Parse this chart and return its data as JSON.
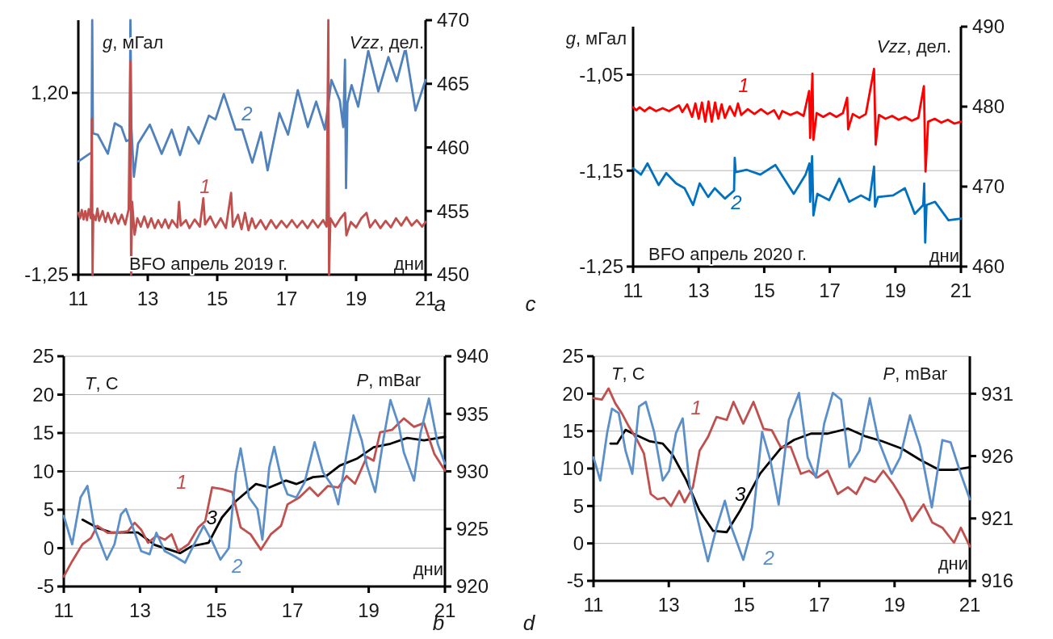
{
  "chart_data": [
    {
      "type": "line",
      "title": "a",
      "ylabel": "g, мГал",
      "y2label": "Vzz, дел.",
      "xlabel": "дни",
      "annotations": [
        "BFO апрель 2019 г."
      ],
      "xlim": [
        11,
        21
      ],
      "xticks": [
        11,
        13,
        15,
        17,
        19,
        21
      ],
      "ylim": [
        -1.25,
        -1.18
      ],
      "yticks": [
        {
          "value": -1.25,
          "label": "-1,25"
        },
        {
          "value": -1.2,
          "label": "1,20"
        }
      ],
      "y2lim": [
        450,
        470
      ],
      "y2ticks": [
        450,
        455,
        460,
        465,
        470
      ],
      "grid": "y",
      "series": [
        {
          "name": "1",
          "color": "#c0504d",
          "x": [
            11.0,
            11.05,
            11.1,
            11.15,
            11.2,
            11.25,
            11.3,
            11.36,
            11.39,
            11.41,
            11.43,
            11.5,
            11.55,
            11.6,
            11.7,
            11.78,
            11.85,
            11.95,
            12.05,
            12.15,
            12.25,
            12.35,
            12.45,
            12.5,
            12.52,
            12.55,
            12.62,
            12.7,
            12.8,
            12.9,
            13.0,
            13.1,
            13.2,
            13.3,
            13.4,
            13.5,
            13.6,
            13.7,
            13.85,
            13.9,
            13.95,
            14.1,
            14.2,
            14.35,
            14.5,
            14.6,
            14.65,
            14.8,
            14.95,
            15.1,
            15.25,
            15.4,
            15.45,
            15.6,
            15.7,
            15.8,
            15.9,
            16.0,
            16.1,
            16.25,
            16.4,
            16.55,
            16.7,
            16.85,
            17.0,
            17.15,
            17.3,
            17.45,
            17.6,
            17.75,
            17.9,
            18.05,
            18.15,
            18.2,
            18.22,
            18.26,
            18.4,
            18.55,
            18.68,
            18.72,
            18.85,
            19.0,
            19.15,
            19.3,
            19.4,
            19.55,
            19.7,
            19.85,
            20.0,
            20.15,
            20.3,
            20.45,
            20.6,
            20.75,
            20.9,
            21.0
          ],
          "values": [
            -1.233,
            -1.2345,
            -1.2322,
            -1.2348,
            -1.2325,
            -1.235,
            -1.232,
            -1.2345,
            -1.2072,
            -1.25,
            -1.2335,
            -1.235,
            -1.2318,
            -1.2352,
            -1.2325,
            -1.2355,
            -1.233,
            -1.2358,
            -1.2332,
            -1.236,
            -1.2335,
            -1.2362,
            -1.232,
            -1.1913,
            -1.25,
            -1.23,
            -1.239,
            -1.2345,
            -1.2368,
            -1.234,
            -1.237,
            -1.2345,
            -1.2372,
            -1.235,
            -1.237,
            -1.2348,
            -1.2372,
            -1.235,
            -1.237,
            -1.23,
            -1.2365,
            -1.235,
            -1.2372,
            -1.2348,
            -1.2368,
            -1.229,
            -1.2362,
            -1.234,
            -1.237,
            -1.2345,
            -1.2372,
            -1.2275,
            -1.2368,
            -1.2335,
            -1.2375,
            -1.233,
            -1.2378,
            -1.2345,
            -1.2372,
            -1.235,
            -1.2375,
            -1.235,
            -1.2372,
            -1.2352,
            -1.237,
            -1.235,
            -1.237,
            -1.2352,
            -1.2372,
            -1.235,
            -1.237,
            -1.235,
            -1.2368,
            -1.18,
            -1.25,
            -1.2345,
            -1.2368,
            -1.2345,
            -1.233,
            -1.2392,
            -1.2355,
            -1.237,
            -1.2345,
            -1.233,
            -1.237,
            -1.235,
            -1.2372,
            -1.2352,
            -1.237,
            -1.2345,
            -1.2365,
            -1.2342,
            -1.2365,
            -1.235,
            -1.2368,
            -1.2355
          ]
        },
        {
          "name": "2",
          "color": "#4f81bd",
          "axis": "y2",
          "x": [
            11.0,
            11.27,
            11.38,
            11.4,
            11.42,
            11.56,
            11.85,
            12.05,
            12.24,
            12.38,
            12.48,
            12.5,
            12.53,
            12.6,
            12.72,
            13.06,
            13.4,
            13.69,
            13.93,
            14.17,
            14.47,
            14.76,
            14.95,
            15.19,
            15.53,
            15.72,
            16.01,
            16.26,
            16.45,
            16.79,
            17.04,
            17.32,
            17.61,
            17.85,
            18.1,
            18.29,
            18.53,
            18.63,
            18.68,
            18.71,
            18.75,
            18.87,
            19.06,
            19.35,
            19.64,
            19.93,
            20.17,
            20.42,
            20.71,
            21.0
          ],
          "values": [
            458.9,
            459.4,
            459.6,
            470,
            461.1,
            461.0,
            459.5,
            461.9,
            461.6,
            460.5,
            460.6,
            470,
            461.5,
            457.7,
            460.3,
            461.8,
            459.5,
            461.4,
            459.4,
            461.6,
            460.3,
            462.5,
            462.2,
            464.2,
            461.4,
            461.4,
            458.8,
            461.2,
            458.2,
            462.7,
            461.0,
            464.5,
            461.6,
            463.6,
            461.4,
            465.3,
            463.7,
            461.6,
            466.9,
            456.8,
            463.5,
            464.9,
            463.2,
            467.6,
            464.4,
            467.1,
            465.2,
            467.8,
            462.9,
            465.3
          ]
        }
      ]
    },
    {
      "type": "line",
      "title": "c",
      "ylabel": "g, мГал",
      "y2label": "Vzz, дел.",
      "xlabel": "дни",
      "annotations": [
        "BFO апрель 2020 г."
      ],
      "xlim": [
        11,
        21
      ],
      "xticks": [
        11,
        13,
        15,
        17,
        19,
        21
      ],
      "ylim": [
        -1.25,
        -1.0
      ],
      "yticks": [
        {
          "value": -1.25,
          "label": "-1,25"
        },
        {
          "value": -1.15,
          "label": "-1,15"
        },
        {
          "value": -1.05,
          "label": "-1,05"
        }
      ],
      "y2lim": [
        460,
        490
      ],
      "y2ticks": [
        460,
        470,
        480,
        490
      ],
      "grid": "y",
      "series": [
        {
          "name": "1",
          "color": "#ff0000",
          "x": [
            11.0,
            11.1,
            11.2,
            11.35,
            11.5,
            11.7,
            11.9,
            12.1,
            12.3,
            12.4,
            12.5,
            12.65,
            12.8,
            12.9,
            13.0,
            13.1,
            13.2,
            13.3,
            13.4,
            13.5,
            13.6,
            13.7,
            13.8,
            13.95,
            14.1,
            14.2,
            14.3,
            14.5,
            14.7,
            14.9,
            15.1,
            15.3,
            15.45,
            15.55,
            15.8,
            16.0,
            16.2,
            16.37,
            16.4,
            16.47,
            16.5,
            16.6,
            16.8,
            17.0,
            17.2,
            17.4,
            17.53,
            17.56,
            17.7,
            17.9,
            18.1,
            18.35,
            18.4,
            18.5,
            18.7,
            18.9,
            19.1,
            19.3,
            19.5,
            19.7,
            19.87,
            19.92,
            20.0,
            20.2,
            20.4,
            20.6,
            20.8,
            21.0
          ],
          "values": [
            -1.084,
            -1.087,
            -1.084,
            -1.088,
            -1.084,
            -1.088,
            -1.085,
            -1.088,
            -1.084,
            -1.082,
            -1.089,
            -1.081,
            -1.094,
            -1.08,
            -1.096,
            -1.079,
            -1.099,
            -1.078,
            -1.099,
            -1.079,
            -1.096,
            -1.081,
            -1.095,
            -1.083,
            -1.093,
            -1.08,
            -1.092,
            -1.086,
            -1.091,
            -1.086,
            -1.091,
            -1.087,
            -1.096,
            -1.088,
            -1.092,
            -1.089,
            -1.093,
            -1.067,
            -1.116,
            -1.049,
            -1.118,
            -1.09,
            -1.094,
            -1.09,
            -1.094,
            -1.09,
            -1.074,
            -1.107,
            -1.091,
            -1.095,
            -1.091,
            -1.044,
            -1.123,
            -1.092,
            -1.096,
            -1.093,
            -1.097,
            -1.094,
            -1.098,
            -1.095,
            -1.062,
            -1.151,
            -1.099,
            -1.096,
            -1.1,
            -1.097,
            -1.101,
            -1.099
          ]
        },
        {
          "name": "2",
          "color": "#0070c0",
          "axis": "y2",
          "x": [
            11.0,
            11.24,
            11.44,
            11.78,
            12.01,
            12.31,
            12.57,
            12.83,
            13.03,
            13.29,
            13.49,
            13.8,
            14.08,
            14.1,
            14.13,
            14.47,
            14.88,
            15.34,
            15.9,
            16.26,
            16.38,
            16.4,
            16.46,
            16.5,
            16.62,
            16.98,
            17.29,
            17.59,
            17.95,
            18.21,
            18.35,
            18.38,
            18.47,
            18.93,
            19.29,
            19.59,
            19.85,
            19.88,
            19.91,
            19.95,
            20.21,
            20.62,
            21.0
          ],
          "values": [
            472.3,
            471.5,
            472.9,
            470.2,
            471.7,
            470.4,
            469.8,
            467.7,
            470.4,
            468.7,
            469.8,
            468.5,
            469.5,
            473.6,
            471.8,
            472.1,
            471.5,
            472.7,
            469.1,
            471.5,
            472.9,
            468.1,
            473.8,
            466.4,
            469.1,
            468.3,
            471.0,
            468.1,
            468.9,
            468.3,
            472.5,
            467.5,
            468.7,
            468.9,
            469.8,
            466.6,
            467.7,
            470.4,
            463.0,
            467.7,
            468.1,
            465.8,
            466.0
          ]
        }
      ]
    },
    {
      "type": "line",
      "title": "b",
      "ylabel": "T, С",
      "y2label": "P, mBar",
      "xlabel": "дни",
      "xlim": [
        11,
        21
      ],
      "xticks": [
        11,
        13,
        15,
        17,
        19,
        21
      ],
      "ylim": [
        -5,
        25
      ],
      "yticks": [
        -5,
        0,
        5,
        10,
        15,
        20,
        25
      ],
      "y2lim": [
        920,
        940
      ],
      "y2ticks": [
        920,
        925,
        930,
        935,
        940
      ],
      "grid": "y",
      "series": [
        {
          "name": "1",
          "color": "#c0504d",
          "x": [
            11.0,
            11.22,
            11.49,
            11.71,
            11.88,
            12.15,
            12.41,
            12.68,
            12.86,
            13.03,
            13.21,
            13.43,
            13.65,
            13.83,
            14.0,
            14.27,
            14.53,
            14.71,
            14.89,
            15.15,
            15.42,
            15.64,
            15.9,
            16.17,
            16.43,
            16.7,
            16.87,
            17.18,
            17.45,
            17.67,
            17.93,
            18.2,
            18.42,
            18.64,
            18.95,
            19.13,
            19.3,
            19.61,
            19.92,
            20.19,
            20.45,
            20.72,
            21.0
          ],
          "values": [
            -3.7,
            -1.7,
            0.5,
            1.3,
            2.9,
            2.0,
            2.0,
            2.2,
            3.3,
            2.4,
            0.7,
            1.6,
            1.1,
            1.8,
            -0.4,
            0.5,
            2.7,
            3.5,
            7.9,
            7.7,
            7.3,
            2.7,
            1.8,
            -0.2,
            1.8,
            2.9,
            5.7,
            6.6,
            7.9,
            6.8,
            8.1,
            7.9,
            9.4,
            8.4,
            11.9,
            11.4,
            15.1,
            15.4,
            16.9,
            15.8,
            16.3,
            12.3,
            10.1
          ]
        },
        {
          "name": "2",
          "color": "#5b8fc9",
          "x": [
            11.0,
            11.22,
            11.44,
            11.62,
            11.8,
            12.13,
            12.33,
            12.5,
            12.63,
            12.81,
            13.03,
            13.25,
            13.43,
            13.65,
            13.92,
            14.18,
            14.4,
            14.67,
            14.89,
            15.11,
            15.33,
            15.51,
            15.64,
            15.86,
            16.08,
            16.21,
            16.39,
            16.52,
            16.7,
            16.87,
            17.1,
            17.32,
            17.58,
            17.8,
            18.07,
            18.2,
            18.42,
            18.6,
            18.82,
            18.95,
            19.17,
            19.39,
            19.57,
            19.79,
            19.92,
            20.19,
            20.36,
            20.58,
            20.81,
            21.0
          ],
          "values": [
            4.2,
            0.5,
            6.6,
            8.1,
            2.7,
            -1.5,
            0.5,
            4.4,
            5.1,
            2.7,
            -0.4,
            -0.8,
            2.0,
            -0.4,
            -1.1,
            -1.9,
            0.3,
            2.9,
            0.9,
            -1.5,
            0.0,
            9.7,
            13.0,
            6.6,
            5.1,
            1.1,
            10.5,
            13.2,
            9.2,
            7.0,
            6.6,
            8.6,
            13.8,
            9.9,
            7.9,
            5.7,
            12.3,
            17.3,
            14.0,
            10.8,
            7.3,
            14.3,
            19.3,
            16.0,
            12.5,
            8.8,
            15.0,
            19.5,
            13.6,
            11.0
          ]
        },
        {
          "name": "3",
          "color": "#000000",
          "axis": "y2",
          "x": [
            11.49,
            11.88,
            12.24,
            12.94,
            13.39,
            14.05,
            14.36,
            14.8,
            15.15,
            15.51,
            16.04,
            16.39,
            16.83,
            17.1,
            17.54,
            17.89,
            18.24,
            18.69,
            19.13,
            19.57,
            20.01,
            20.45,
            21.0
          ],
          "values": [
            925.8,
            925.1,
            924.7,
            924.7,
            923.6,
            922.9,
            923.5,
            923.8,
            926.0,
            927.4,
            928.9,
            928.6,
            929.2,
            928.9,
            929.5,
            929.6,
            930.5,
            931.1,
            932.1,
            932.4,
            932.9,
            932.7,
            933.0
          ]
        }
      ]
    },
    {
      "type": "line",
      "title": "d",
      "ylabel": "T, С",
      "y2label": "P, mBar",
      "xlabel": "дни",
      "xlim": [
        11,
        21
      ],
      "xticks": [
        11,
        13,
        15,
        17,
        19,
        21
      ],
      "ylim": [
        -5,
        25
      ],
      "yticks": [
        -5,
        0,
        5,
        10,
        15,
        20,
        25
      ],
      "y2lim": [
        916,
        934
      ],
      "y2ticks": [
        916,
        921,
        926,
        931
      ],
      "grid": "y",
      "series": [
        {
          "name": "1",
          "color": "#c0504d",
          "x": [
            11.0,
            11.22,
            11.4,
            11.58,
            11.75,
            11.94,
            12.16,
            12.34,
            12.52,
            12.7,
            12.88,
            13.06,
            13.28,
            13.42,
            13.64,
            13.82,
            14.04,
            14.27,
            14.54,
            14.72,
            14.98,
            15.25,
            15.52,
            15.74,
            15.97,
            16.24,
            16.51,
            16.73,
            16.95,
            17.22,
            17.49,
            17.76,
            17.98,
            18.21,
            18.48,
            18.7,
            18.97,
            19.24,
            19.46,
            19.77,
            20.0,
            20.27,
            20.58,
            20.76,
            21.0
          ],
          "values": [
            19.4,
            19.2,
            20.7,
            18.7,
            17.4,
            15.6,
            13.8,
            12.0,
            6.6,
            5.9,
            6.1,
            5.0,
            7.0,
            5.5,
            7.5,
            12.4,
            14.2,
            16.9,
            16.5,
            18.9,
            16.0,
            18.9,
            15.3,
            15.1,
            12.9,
            12.9,
            9.3,
            9.7,
            8.8,
            9.7,
            6.6,
            7.5,
            6.6,
            8.8,
            8.2,
            9.7,
            7.9,
            5.7,
            3.0,
            5.2,
            2.8,
            2.1,
            0.1,
            2.1,
            -0.4
          ]
        },
        {
          "name": "2",
          "color": "#5b8fc9",
          "x": [
            11.0,
            11.18,
            11.36,
            11.49,
            11.67,
            11.85,
            12.03,
            12.21,
            12.39,
            12.61,
            12.84,
            13.01,
            13.19,
            13.37,
            13.55,
            13.82,
            14.04,
            14.27,
            14.49,
            14.67,
            14.98,
            15.21,
            15.48,
            15.7,
            15.92,
            16.19,
            16.46,
            16.69,
            16.91,
            17.13,
            17.36,
            17.58,
            17.8,
            18.07,
            18.34,
            18.57,
            18.92,
            19.15,
            19.41,
            19.68,
            19.99,
            20.27,
            20.49,
            20.76,
            21.0
          ],
          "values": [
            11.5,
            8.4,
            14.7,
            18.0,
            17.4,
            12.4,
            9.3,
            18.3,
            18.9,
            14.9,
            8.4,
            9.7,
            14.7,
            16.7,
            7.9,
            2.1,
            -2.4,
            2.1,
            5.7,
            2.1,
            -2.2,
            2.1,
            14.9,
            11.1,
            5.2,
            16.5,
            20.1,
            11.5,
            8.8,
            16.0,
            20.1,
            19.2,
            10.2,
            12.4,
            19.4,
            13.8,
            9.3,
            11.5,
            17.1,
            12.9,
            4.8,
            13.8,
            13.5,
            9.3,
            5.9
          ]
        },
        {
          "name": "3",
          "color": "#000000",
          "axis": "y2",
          "x": [
            11.45,
            11.63,
            11.85,
            12.12,
            12.48,
            12.84,
            13.1,
            13.46,
            13.82,
            14.18,
            14.54,
            14.89,
            15.43,
            15.97,
            16.33,
            16.78,
            17.22,
            17.76,
            18.21,
            18.66,
            19.19,
            19.68,
            20.18,
            20.58,
            21.0
          ],
          "values": [
            927.0,
            927.0,
            928.1,
            927.7,
            927.2,
            927.0,
            926.1,
            924.1,
            921.6,
            920.0,
            919.9,
            921.6,
            924.6,
            926.6,
            927.3,
            927.8,
            927.8,
            928.2,
            927.6,
            927.2,
            926.6,
            925.7,
            924.9,
            924.9,
            925.1
          ]
        }
      ]
    }
  ]
}
